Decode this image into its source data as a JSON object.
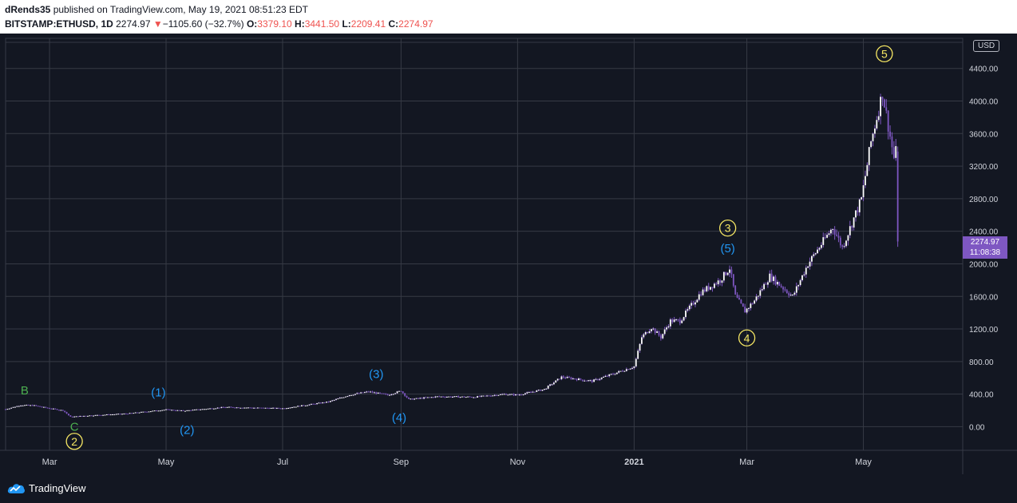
{
  "header": {
    "author": "dRends35",
    "published_text": " published on TradingView.com, May 19, 2021 08:51:23 EDT",
    "symbol": "BITSTAMP:ETHUSD, 1D",
    "last": "2274.97",
    "change_arrow": "▼",
    "change": "−1105.60 (−32.7%)",
    "o_label": "O:",
    "o_value": "3379.10",
    "h_label": "H:",
    "h_value": "3441.50",
    "l_label": "L:",
    "l_value": "2209.41",
    "c_label": "C:",
    "c_value": "2274.97"
  },
  "currency_label": "USD",
  "price_tag": {
    "price": "2274.97",
    "countdown": "11:08:38"
  },
  "footer": {
    "brand": "TradingView"
  },
  "colors": {
    "background": "#131722",
    "grid": "#363a45",
    "candle": "#7e57c2",
    "axis_text": "#d1d4dc",
    "wave_yellow": "#f5e663",
    "wave_blue": "#2196f3",
    "wave_green": "#4caf50"
  },
  "chart_data": {
    "type": "candlestick",
    "y_axis": {
      "ticks": [
        "0.00",
        "400.00",
        "800.00",
        "1200.00",
        "1600.00",
        "2000.00",
        "2400.00",
        "2800.00",
        "3200.00",
        "3600.00",
        "4000.00",
        "4400.00"
      ],
      "ylim": [
        -290,
        4770
      ]
    },
    "x_axis": {
      "ticks": [
        {
          "date": "2020-03-01",
          "label": "Mar"
        },
        {
          "date": "2020-05-01",
          "label": "May"
        },
        {
          "date": "2020-07-01",
          "label": "Jul"
        },
        {
          "date": "2020-09-01",
          "label": "Sep"
        },
        {
          "date": "2020-11-01",
          "label": "Nov"
        },
        {
          "date": "2021-01-01",
          "label": "2021"
        },
        {
          "date": "2021-03-01",
          "label": "Mar"
        },
        {
          "date": "2021-05-01",
          "label": "May"
        }
      ],
      "xlim": [
        "2020-02-07",
        "2021-06-22"
      ]
    },
    "price_path": [
      {
        "date": "2020-02-07",
        "price": 215
      },
      {
        "date": "2020-02-15",
        "price": 265
      },
      {
        "date": "2020-02-22",
        "price": 260
      },
      {
        "date": "2020-03-01",
        "price": 225
      },
      {
        "date": "2020-03-08",
        "price": 200
      },
      {
        "date": "2020-03-12",
        "price": 120
      },
      {
        "date": "2020-03-20",
        "price": 135
      },
      {
        "date": "2020-04-10",
        "price": 160
      },
      {
        "date": "2020-05-01",
        "price": 210
      },
      {
        "date": "2020-05-10",
        "price": 195
      },
      {
        "date": "2020-06-01",
        "price": 240
      },
      {
        "date": "2020-07-01",
        "price": 225
      },
      {
        "date": "2020-07-25",
        "price": 305
      },
      {
        "date": "2020-08-05",
        "price": 390
      },
      {
        "date": "2020-08-15",
        "price": 430
      },
      {
        "date": "2020-08-25",
        "price": 390
      },
      {
        "date": "2020-09-01",
        "price": 440
      },
      {
        "date": "2020-09-05",
        "price": 335
      },
      {
        "date": "2020-09-20",
        "price": 370
      },
      {
        "date": "2020-10-10",
        "price": 365
      },
      {
        "date": "2020-10-25",
        "price": 400
      },
      {
        "date": "2020-11-01",
        "price": 390
      },
      {
        "date": "2020-11-15",
        "price": 460
      },
      {
        "date": "2020-11-24",
        "price": 610
      },
      {
        "date": "2020-12-10",
        "price": 560
      },
      {
        "date": "2020-12-20",
        "price": 640
      },
      {
        "date": "2021-01-01",
        "price": 740
      },
      {
        "date": "2021-01-05",
        "price": 1100
      },
      {
        "date": "2021-01-10",
        "price": 1220
      },
      {
        "date": "2021-01-15",
        "price": 1100
      },
      {
        "date": "2021-01-20",
        "price": 1300
      },
      {
        "date": "2021-01-25",
        "price": 1300
      },
      {
        "date": "2021-02-05",
        "price": 1650
      },
      {
        "date": "2021-02-15",
        "price": 1800
      },
      {
        "date": "2021-02-20",
        "price": 1950
      },
      {
        "date": "2021-02-23",
        "price": 1600
      },
      {
        "date": "2021-02-28",
        "price": 1420
      },
      {
        "date": "2021-03-05",
        "price": 1550
      },
      {
        "date": "2021-03-13",
        "price": 1850
      },
      {
        "date": "2021-03-25",
        "price": 1600
      },
      {
        "date": "2021-04-02",
        "price": 2000
      },
      {
        "date": "2021-04-15",
        "price": 2450
      },
      {
        "date": "2021-04-20",
        "price": 2200
      },
      {
        "date": "2021-04-30",
        "price": 2800
      },
      {
        "date": "2021-05-05",
        "price": 3500
      },
      {
        "date": "2021-05-11",
        "price": 4100
      },
      {
        "date": "2021-05-14",
        "price": 3700
      },
      {
        "date": "2021-05-17",
        "price": 3300
      },
      {
        "date": "2021-05-18",
        "price": 3380
      },
      {
        "date": "2021-05-19",
        "price": 2275
      }
    ],
    "last_candle": {
      "date": "2021-05-19",
      "open": 3379.1,
      "high": 3441.5,
      "low": 2209.41,
      "close": 2274.97
    },
    "annotations": [
      {
        "label": "B",
        "date": "2020-02-17",
        "price": 445,
        "style": "green"
      },
      {
        "label": "C",
        "date": "2020-03-14",
        "price": 0,
        "style": "green"
      },
      {
        "label": "2",
        "date": "2020-03-14",
        "price": -180,
        "style": "circle"
      },
      {
        "label": "(1)",
        "date": "2020-04-27",
        "price": 420,
        "style": "blue"
      },
      {
        "label": "(2)",
        "date": "2020-05-12",
        "price": -40,
        "style": "blue"
      },
      {
        "label": "(3)",
        "date": "2020-08-19",
        "price": 645,
        "style": "blue"
      },
      {
        "label": "(4)",
        "date": "2020-08-31",
        "price": 110,
        "style": "blue"
      },
      {
        "label": "3",
        "date": "2021-02-19",
        "price": 2440,
        "style": "circle"
      },
      {
        "label": "(5)",
        "date": "2021-02-19",
        "price": 2190,
        "style": "blue"
      },
      {
        "label": "4",
        "date": "2021-03-01",
        "price": 1090,
        "style": "circle"
      },
      {
        "label": "5",
        "date": "2021-05-12",
        "price": 4580,
        "style": "circle"
      }
    ]
  }
}
